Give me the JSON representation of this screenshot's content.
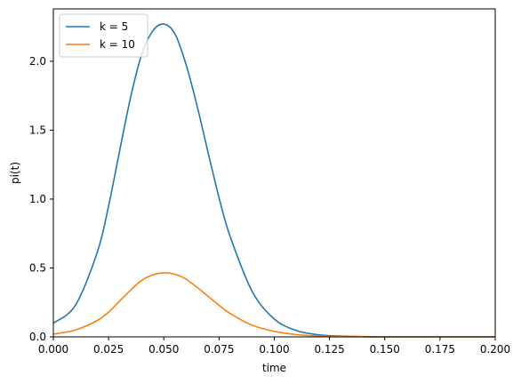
{
  "chart_data": {
    "type": "line",
    "title": "",
    "xlabel": "time",
    "ylabel": "pi(t)",
    "xlim": [
      0,
      0.2
    ],
    "ylim": [
      0,
      2.38
    ],
    "xticks": [
      0,
      0.025,
      0.05,
      0.075,
      0.1,
      0.125,
      0.15,
      0.175,
      0.2
    ],
    "xtick_labels": [
      "0.000",
      "0.025",
      "0.050",
      "0.075",
      "0.100",
      "0.125",
      "0.150",
      "0.175",
      "0.200"
    ],
    "yticks": [
      0,
      0.5,
      1.0,
      1.5,
      2.0
    ],
    "ytick_labels": [
      "0.0",
      "0.5",
      "1.0",
      "1.5",
      "2.0"
    ],
    "grid": false,
    "legend": "top-left",
    "series": [
      {
        "name": "k = 5",
        "color": "#1f77b4",
        "x": [
          0,
          0.01,
          0.02,
          0.025,
          0.03,
          0.035,
          0.04,
          0.045,
          0.05,
          0.055,
          0.06,
          0.065,
          0.07,
          0.075,
          0.08,
          0.09,
          0.1,
          0.11,
          0.12,
          0.13,
          0.14,
          0.15,
          0.175,
          0.2
        ],
        "y": [
          0.1,
          0.23,
          0.62,
          0.95,
          1.35,
          1.74,
          2.05,
          2.22,
          2.27,
          2.2,
          1.98,
          1.68,
          1.34,
          1.01,
          0.73,
          0.33,
          0.13,
          0.046,
          0.015,
          0.005,
          0.002,
          0.0,
          0.0,
          0.0
        ]
      },
      {
        "name": "k = 10",
        "color": "#ff7f0e",
        "x": [
          0,
          0.01,
          0.02,
          0.025,
          0.03,
          0.035,
          0.04,
          0.045,
          0.05,
          0.055,
          0.06,
          0.065,
          0.07,
          0.075,
          0.08,
          0.09,
          0.1,
          0.11,
          0.12,
          0.13,
          0.14,
          0.15,
          0.175,
          0.2
        ],
        "y": [
          0.02,
          0.05,
          0.12,
          0.18,
          0.26,
          0.34,
          0.41,
          0.45,
          0.465,
          0.455,
          0.42,
          0.36,
          0.295,
          0.23,
          0.17,
          0.085,
          0.04,
          0.017,
          0.006,
          0.002,
          0.001,
          0.0,
          0.0,
          0.0
        ]
      }
    ]
  }
}
